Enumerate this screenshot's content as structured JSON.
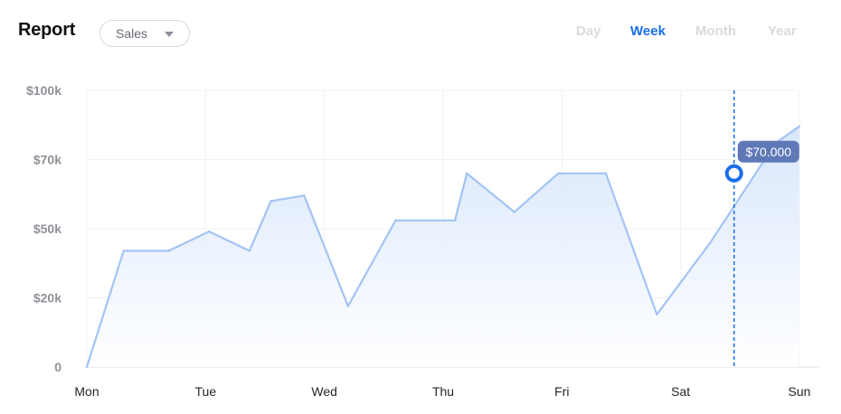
{
  "header": {
    "title": "Report",
    "metric_dropdown": {
      "value": "Sales"
    },
    "period_tabs": [
      {
        "label": "Day",
        "active": false
      },
      {
        "label": "Week",
        "active": true
      },
      {
        "label": "Month",
        "active": false
      },
      {
        "label": "Year",
        "active": false
      }
    ]
  },
  "colors": {
    "accent": "#1a6fe6",
    "line": "#a3c4f5",
    "area": "#dce9fc",
    "tooltip": "#5f79b8"
  },
  "chart_data": {
    "type": "area",
    "title": "",
    "xlabel": "",
    "ylabel": "",
    "categories": [
      "Mon",
      "Tue",
      "Wed",
      "Thu",
      "Fri",
      "Sat",
      "Sun"
    ],
    "y_tick_labels": [
      "0",
      "$20k",
      "$50k",
      "$70k",
      "$100k"
    ],
    "ylim": [
      0,
      100000
    ],
    "grid": true,
    "x_range": [
      0,
      6
    ],
    "series": [
      {
        "x": [
          0.0,
          0.31,
          0.69,
          1.03,
          1.37,
          1.55,
          1.83,
          2.2,
          2.6,
          3.1,
          3.2,
          3.6,
          3.97,
          4.37,
          4.8,
          5.25,
          5.8,
          6.0
        ],
        "values": [
          0,
          42000,
          42000,
          49000,
          42000,
          60000,
          62000,
          22000,
          53000,
          53000,
          70000,
          56000,
          70000,
          70000,
          19000,
          45000,
          81000,
          87000
        ]
      }
    ],
    "highlight": {
      "x": 5.45,
      "value": 70000,
      "label": "$70.000"
    }
  }
}
